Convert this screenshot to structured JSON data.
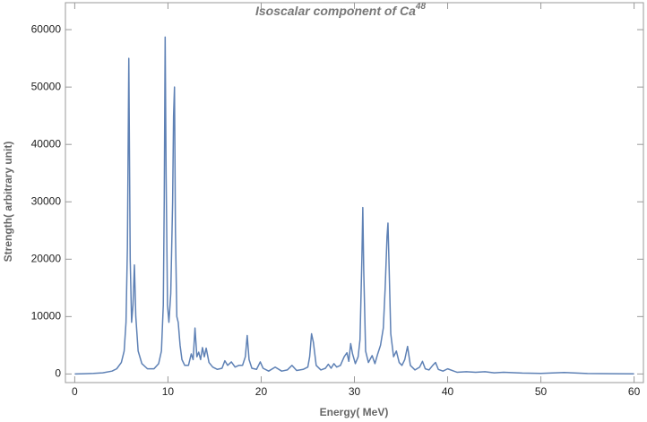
{
  "chart_data": {
    "type": "line",
    "title": "Isoscalar component of Ca",
    "title_superscript": "48",
    "x_label": "Energy( MeV)",
    "y_label": "Strength( arbitrary  unit)",
    "color": "#5e81b5",
    "xlim": [
      -1,
      61
    ],
    "ylim": [
      -1500,
      64700
    ],
    "xticks": [
      0,
      10,
      20,
      30,
      40,
      50,
      60
    ],
    "yticks": [
      0,
      10000,
      20000,
      30000,
      40000,
      50000,
      60000
    ],
    "x": [
      0,
      1,
      2,
      3,
      4,
      4.5,
      5,
      5.3,
      5.5,
      5.65,
      5.8,
      5.95,
      6.1,
      6.25,
      6.4,
      6.55,
      6.8,
      7.2,
      7.8,
      8.5,
      9,
      9.3,
      9.5,
      9.6,
      9.7,
      9.8,
      9.95,
      10.1,
      10.3,
      10.5,
      10.6,
      10.7,
      10.8,
      10.95,
      11.1,
      11.3,
      11.5,
      11.8,
      12.2,
      12.5,
      12.7,
      12.9,
      13.1,
      13.3,
      13.5,
      13.7,
      13.9,
      14.1,
      14.4,
      14.8,
      15.3,
      15.8,
      16.1,
      16.4,
      16.8,
      17.2,
      17.6,
      18.0,
      18.3,
      18.5,
      18.7,
      19.0,
      19.5,
      19.9,
      20.2,
      20.8,
      21.5,
      22.2,
      22.8,
      23.3,
      23.8,
      24.5,
      25.0,
      25.2,
      25.4,
      25.6,
      25.9,
      26.4,
      26.9,
      27.2,
      27.5,
      27.8,
      28.1,
      28.5,
      28.9,
      29.2,
      29.4,
      29.6,
      29.8,
      30.1,
      30.4,
      30.6,
      30.8,
      30.9,
      31.0,
      31.2,
      31.5,
      31.9,
      32.2,
      32.5,
      32.8,
      33.1,
      33.3,
      33.5,
      33.6,
      33.7,
      33.9,
      34.2,
      34.5,
      34.8,
      35.1,
      35.4,
      35.7,
      36.0,
      36.5,
      37.0,
      37.3,
      37.6,
      38.0,
      38.4,
      38.7,
      39.0,
      39.5,
      40.0,
      41,
      42,
      43,
      44,
      45,
      46,
      48,
      50,
      52.5,
      55,
      58,
      60
    ],
    "values": [
      0,
      50,
      100,
      200,
      500,
      900,
      2000,
      4000,
      9000,
      22000,
      55000,
      20000,
      9000,
      12000,
      19000,
      10000,
      4000,
      1800,
      900,
      900,
      1800,
      4000,
      12000,
      30000,
      58700,
      35000,
      12000,
      9000,
      14000,
      30000,
      45000,
      50000,
      25000,
      10000,
      9000,
      5000,
      2500,
      1500,
      1500,
      3500,
      2500,
      8000,
      3000,
      3800,
      2500,
      4600,
      3000,
      4500,
      2000,
      1200,
      800,
      1000,
      2300,
      1500,
      2100,
      1200,
      1500,
      1500,
      3000,
      6700,
      2500,
      1000,
      800,
      2100,
      1000,
      500,
      1200,
      500,
      700,
      1500,
      600,
      800,
      1200,
      3000,
      7000,
      5500,
      1500,
      700,
      1000,
      1700,
      1000,
      1800,
      1200,
      1500,
      3000,
      3700,
      2200,
      5300,
      3500,
      1800,
      3000,
      6000,
      20000,
      29000,
      18000,
      4000,
      2000,
      3200,
      1800,
      3500,
      5000,
      8000,
      15000,
      24000,
      26300,
      20000,
      7000,
      3000,
      4000,
      2000,
      1500,
      2500,
      4800,
      1500,
      700,
      1200,
      2200,
      900,
      700,
      1500,
      2000,
      800,
      500,
      900,
      300,
      400,
      300,
      400,
      200,
      300,
      150,
      100,
      250,
      80,
      50,
      30
    ]
  }
}
